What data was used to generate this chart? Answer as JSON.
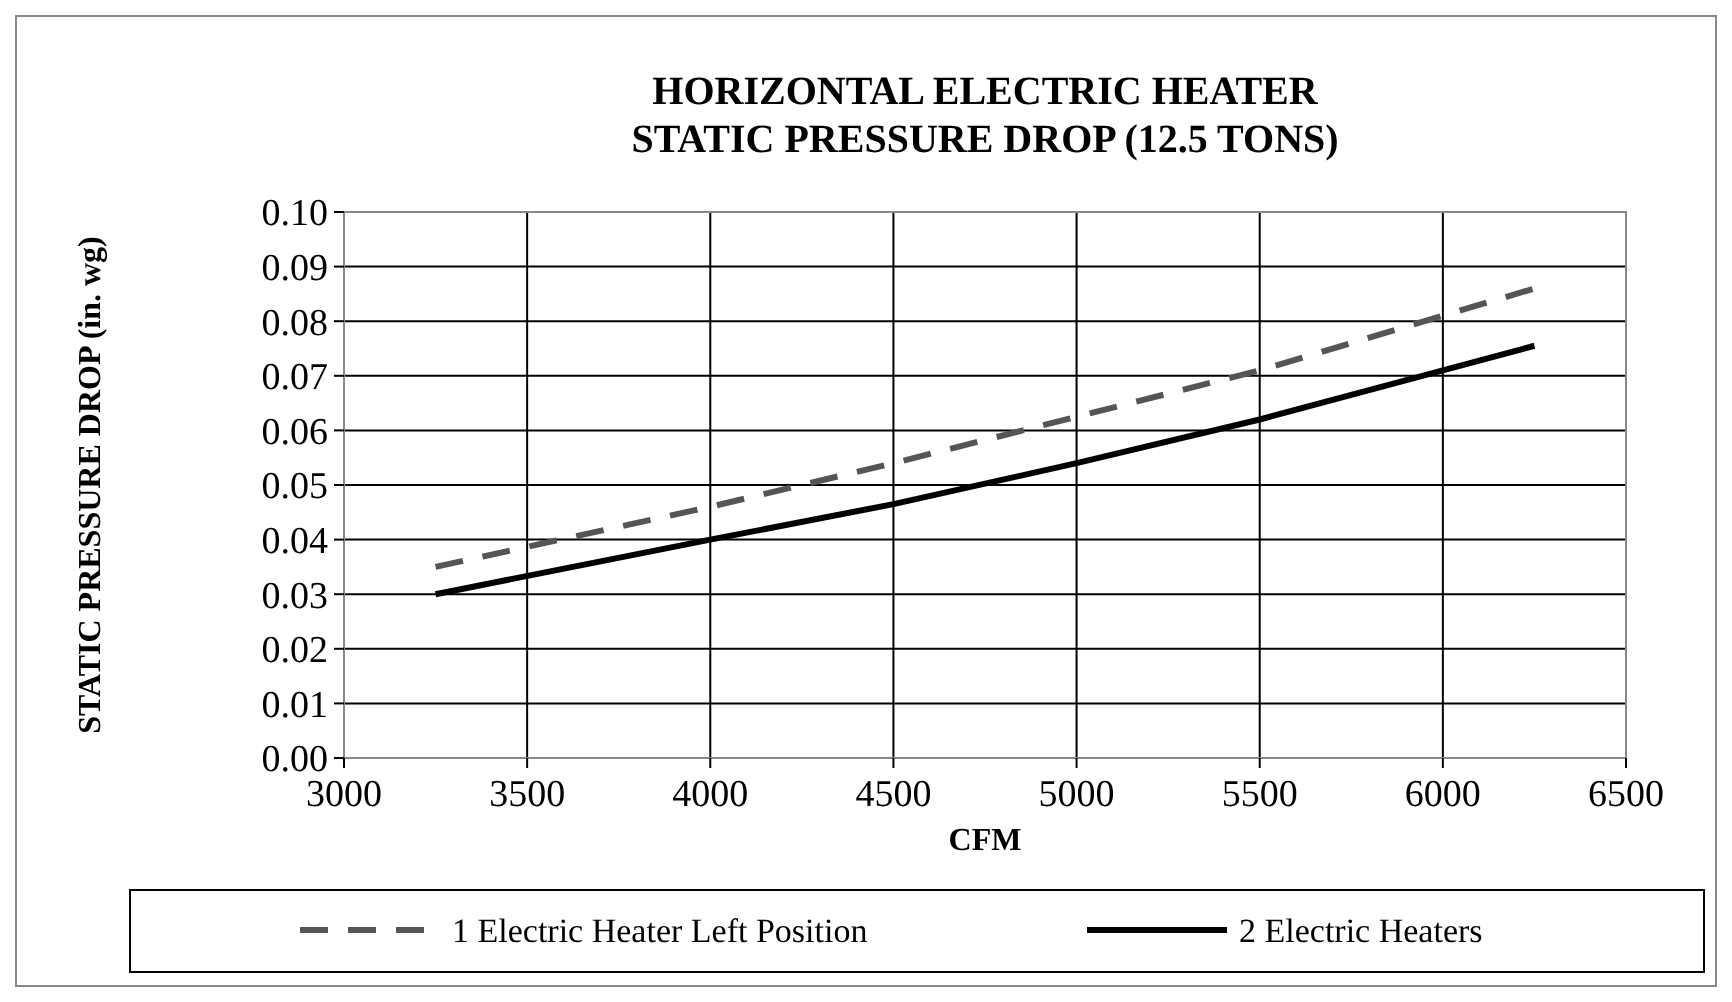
{
  "chart_data": {
    "type": "line",
    "title": "HORIZONTAL ELECTRIC HEATER\nSTATIC PRESSURE DROP (12.5 TONS)",
    "xlabel": "CFM",
    "ylabel": "STATIC PRESSURE DROP (in. wg)",
    "xlim": [
      3000,
      6500
    ],
    "xticks": [
      3000,
      3500,
      4000,
      4500,
      5000,
      5500,
      6000,
      6500
    ],
    "ylim": [
      0,
      0.1
    ],
    "yticks": [
      {
        "value": 0,
        "label": "0.00"
      },
      {
        "value": 0.01,
        "label": "0.01"
      },
      {
        "value": 0.02,
        "label": "0.02"
      },
      {
        "value": 0.03,
        "label": "0.03"
      },
      {
        "value": 0.04,
        "label": "0.04"
      },
      {
        "value": 0.05,
        "label": "0.05"
      },
      {
        "value": 0.06,
        "label": "0.06"
      },
      {
        "value": 0.07,
        "label": "0.07"
      },
      {
        "value": 0.08,
        "label": "0.08"
      },
      {
        "value": 0.09,
        "label": "0.09"
      },
      {
        "value": 0.1,
        "label": "0.10"
      }
    ],
    "grid": true,
    "legend": "bottom",
    "x": [
      3250,
      4000,
      4500,
      5000,
      5500,
      6000,
      6250
    ],
    "series": [
      {
        "name": "1 Electric Heater Left Position",
        "color": "#555555",
        "line_style": "dashed",
        "values": [
          0.035,
          0.046,
          0.054,
          0.0625,
          0.071,
          0.081,
          0.086
        ]
      },
      {
        "name": "2 Electric Heaters",
        "color": "#000000",
        "line_style": "solid",
        "values": [
          0.03,
          0.04,
          0.0465,
          0.054,
          0.062,
          0.071,
          0.0755
        ]
      }
    ]
  }
}
